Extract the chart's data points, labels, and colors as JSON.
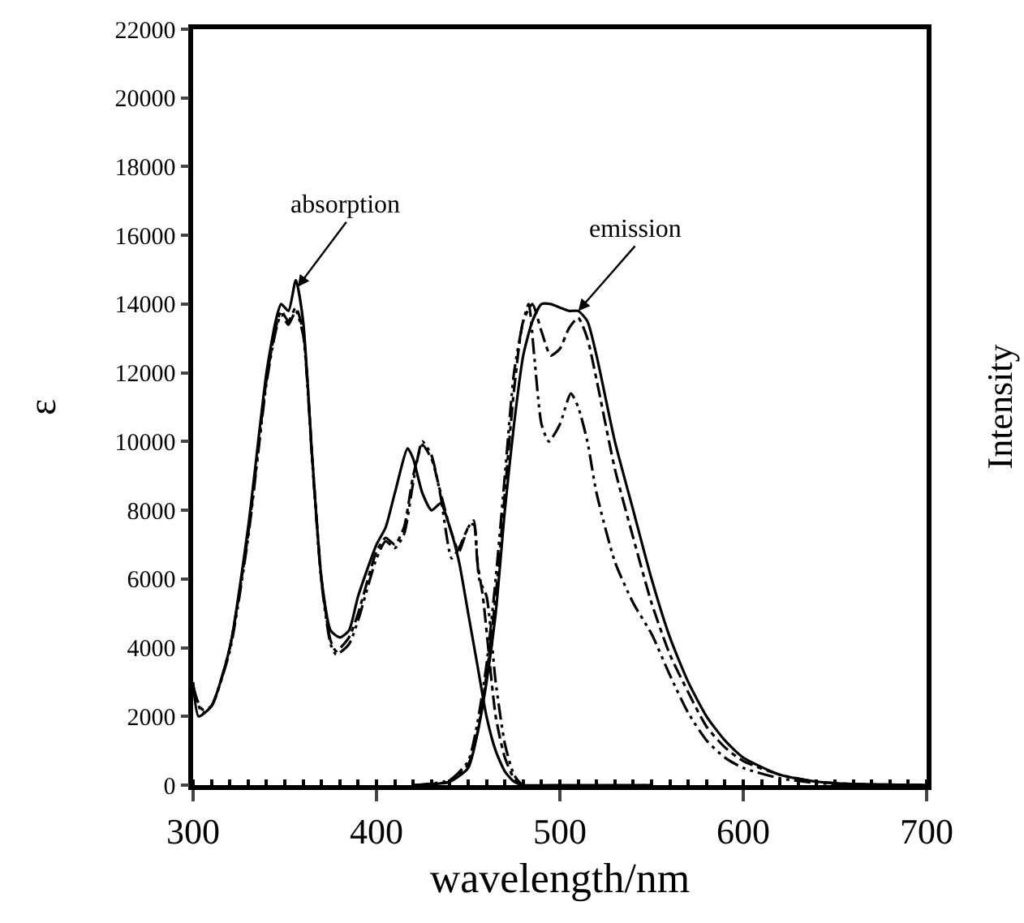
{
  "chart_data": {
    "type": "line",
    "xlabel": "wavelength/nm",
    "ylabel": "ε",
    "y2label": "Intensity",
    "xlim": [
      300,
      700
    ],
    "xticks": [
      300,
      400,
      500,
      600,
      700
    ],
    "ylim": [
      0,
      22000
    ],
    "yticks": [
      0,
      2000,
      4000,
      6000,
      8000,
      10000,
      12000,
      14000,
      16000,
      18000,
      20000,
      22000
    ],
    "marker": "none",
    "annotations": [
      {
        "text": "absorption",
        "x": 357,
        "y": 14500
      },
      {
        "text": "emission",
        "x": 510,
        "y": 13800
      }
    ],
    "series": [
      {
        "color": "#000000",
        "line_style": "solid",
        "x": [
          300,
          303,
          310,
          320,
          330,
          340,
          345,
          348,
          352,
          356,
          360,
          365,
          370,
          375,
          380,
          385,
          390,
          400,
          405,
          410,
          417,
          420,
          425,
          430,
          435,
          440,
          445,
          450,
          455,
          460,
          465,
          470,
          475,
          480,
          500,
          550
        ],
        "values": [
          3000,
          2000,
          2300,
          4000,
          7500,
          12000,
          13500,
          14000,
          13800,
          14700,
          13500,
          9500,
          6000,
          4500,
          4300,
          4500,
          5500,
          7000,
          7500,
          8500,
          9800,
          9500,
          8500,
          8000,
          8200,
          7500,
          6500,
          5000,
          3500,
          2000,
          1000,
          400,
          100,
          0,
          0,
          0
        ]
      },
      {
        "color": "#000000",
        "line_style": "dashed",
        "x": [
          300,
          305,
          310,
          320,
          330,
          340,
          345,
          348,
          352,
          356,
          360,
          365,
          370,
          375,
          378,
          385,
          390,
          400,
          405,
          410,
          415,
          420,
          425,
          430,
          435,
          440,
          445,
          450,
          453,
          455,
          458,
          460,
          465,
          470,
          475,
          480,
          550
        ],
        "values": [
          2800,
          2200,
          2300,
          4000,
          7300,
          11800,
          13300,
          13800,
          13500,
          13900,
          13200,
          9500,
          6000,
          4200,
          3900,
          4300,
          5000,
          6800,
          7200,
          7000,
          7500,
          9000,
          9900,
          9500,
          8500,
          7500,
          6800,
          7500,
          7600,
          6500,
          5500,
          4500,
          2000,
          800,
          200,
          0,
          0
        ]
      },
      {
        "color": "#000000",
        "line_style": "dotted",
        "x": [
          300,
          305,
          310,
          320,
          330,
          340,
          345,
          348,
          352,
          356,
          360,
          365,
          370,
          375,
          378,
          385,
          390,
          400,
          405,
          410,
          415,
          420,
          425,
          430,
          435,
          441,
          445,
          450,
          453,
          456,
          460,
          465,
          470,
          475,
          480,
          550
        ],
        "values": [
          2900,
          2100,
          2300,
          3900,
          7200,
          11700,
          13200,
          13700,
          13400,
          13800,
          13100,
          9400,
          5900,
          4100,
          3800,
          4100,
          4800,
          6600,
          7100,
          6900,
          7300,
          8800,
          10000,
          9600,
          8400,
          6600,
          6900,
          7500,
          7700,
          6000,
          5500,
          3000,
          1200,
          300,
          0,
          0
        ]
      },
      {
        "color": "#000000",
        "line_style": "solid",
        "x": [
          420,
          440,
          450,
          455,
          460,
          465,
          470,
          475,
          480,
          485,
          490,
          495,
          500,
          505,
          510,
          515,
          520,
          530,
          540,
          550,
          560,
          570,
          580,
          590,
          600,
          620,
          640,
          660,
          700
        ],
        "values": [
          0,
          100,
          500,
          1500,
          3000,
          5000,
          8000,
          10500,
          12500,
          13500,
          14000,
          14000,
          13900,
          13800,
          13800,
          13500,
          12500,
          10000,
          8000,
          6000,
          4300,
          3000,
          2000,
          1300,
          800,
          300,
          100,
          30,
          0
        ]
      },
      {
        "color": "#000000",
        "line_style": "dashed",
        "x": [
          420,
          440,
          450,
          455,
          460,
          465,
          470,
          475,
          480,
          485,
          490,
          495,
          500,
          505,
          510,
          515,
          520,
          530,
          540,
          550,
          560,
          570,
          580,
          590,
          600,
          620,
          640,
          660,
          700
        ],
        "values": [
          0,
          100,
          600,
          1500,
          3200,
          5500,
          8500,
          11500,
          13500,
          14000,
          13200,
          12500,
          12700,
          13300,
          13600,
          13000,
          11800,
          9200,
          7200,
          5300,
          3800,
          2700,
          1700,
          1100,
          700,
          300,
          100,
          30,
          0
        ]
      },
      {
        "color": "#000000",
        "line_style": "dotted",
        "x": [
          420,
          440,
          450,
          455,
          460,
          465,
          470,
          475,
          480,
          483,
          486,
          490,
          494,
          500,
          506,
          510,
          515,
          520,
          530,
          540,
          550,
          560,
          570,
          580,
          590,
          600,
          620,
          640,
          660,
          700
        ],
        "values": [
          0,
          150,
          700,
          1800,
          3500,
          6000,
          9000,
          12000,
          13500,
          14000,
          12500,
          10500,
          10000,
          10500,
          11400,
          11000,
          10000,
          8500,
          6500,
          5300,
          4400,
          3200,
          2100,
          1300,
          800,
          500,
          200,
          60,
          20,
          0
        ]
      }
    ]
  }
}
